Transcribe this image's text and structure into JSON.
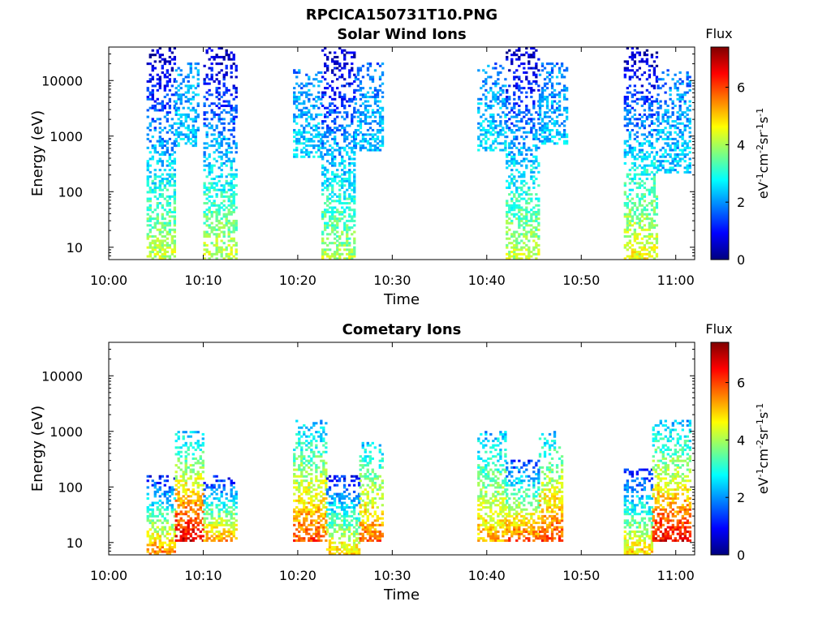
{
  "figure": {
    "title": "RPCICA150731T10.PNG"
  },
  "colormap": {
    "name": "jet",
    "stops": [
      "#00007f",
      "#0000ff",
      "#007fff",
      "#00ffff",
      "#7fff7f",
      "#ffff00",
      "#ff7f00",
      "#ff0000",
      "#7f0000"
    ]
  },
  "chart_data": [
    {
      "type": "heatmap",
      "title": "Solar Wind Ions",
      "xlabel": "Time",
      "ylabel": "Energy (eV)",
      "x_ticks": [
        "10:00",
        "10:10",
        "10:20",
        "10:30",
        "10:40",
        "10:50",
        "11:00"
      ],
      "x_range_minutes": [
        0,
        62
      ],
      "y_scale": "log",
      "y_ticks": [
        "10",
        "100",
        "1000",
        "10000"
      ],
      "y_range": [
        6,
        40000
      ],
      "colorbar": {
        "label": "eV-1cm-2sr-1s-1",
        "title": "Flux",
        "range": [
          0,
          7.4
        ],
        "ticks": [
          "0",
          "2",
          "4",
          "6"
        ]
      },
      "clusters": [
        {
          "t_start": 4.0,
          "t_end": 7.0,
          "e_min": 6,
          "e_max": 40000,
          "v_low": 4.2,
          "v_high": 0.3
        },
        {
          "t_start": 7.0,
          "t_end": 9.5,
          "e_min": 600,
          "e_max": 20000,
          "v_low": 2.4,
          "v_high": 2.0
        },
        {
          "t_start": 10.0,
          "t_end": 13.5,
          "e_min": 6,
          "e_max": 40000,
          "v_low": 4.2,
          "v_high": 0.3
        },
        {
          "t_start": 19.5,
          "t_end": 22.5,
          "e_min": 400,
          "e_max": 15000,
          "v_low": 2.6,
          "v_high": 1.8
        },
        {
          "t_start": 22.5,
          "t_end": 26.0,
          "e_min": 6,
          "e_max": 40000,
          "v_low": 4.0,
          "v_high": 0.3
        },
        {
          "t_start": 26.0,
          "t_end": 29.0,
          "e_min": 500,
          "e_max": 20000,
          "v_low": 2.4,
          "v_high": 1.8
        },
        {
          "t_start": 39.0,
          "t_end": 42.0,
          "e_min": 500,
          "e_max": 20000,
          "v_low": 2.6,
          "v_high": 1.8
        },
        {
          "t_start": 42.0,
          "t_end": 45.5,
          "e_min": 6,
          "e_max": 40000,
          "v_low": 4.2,
          "v_high": 0.3
        },
        {
          "t_start": 45.5,
          "t_end": 48.5,
          "e_min": 700,
          "e_max": 20000,
          "v_low": 2.4,
          "v_high": 1.8
        },
        {
          "t_start": 54.5,
          "t_end": 58.0,
          "e_min": 6,
          "e_max": 40000,
          "v_low": 4.6,
          "v_high": 0.3
        },
        {
          "t_start": 58.0,
          "t_end": 61.5,
          "e_min": 200,
          "e_max": 15000,
          "v_low": 2.4,
          "v_high": 1.8
        }
      ]
    },
    {
      "type": "heatmap",
      "title": "Cometary Ions",
      "xlabel": "Time",
      "ylabel": "Energy (eV)",
      "x_ticks": [
        "10:00",
        "10:10",
        "10:20",
        "10:30",
        "10:40",
        "10:50",
        "11:00"
      ],
      "x_range_minutes": [
        0,
        62
      ],
      "y_scale": "log",
      "y_ticks": [
        "10",
        "100",
        "1000",
        "10000"
      ],
      "y_range": [
        6,
        40000
      ],
      "colorbar": {
        "label": "eV-1cm-2sr-1s-1",
        "title": "Flux",
        "range": [
          0,
          7.4
        ],
        "ticks": [
          "0",
          "2",
          "4",
          "6"
        ]
      },
      "clusters": [
        {
          "t_start": 4.0,
          "t_end": 7.0,
          "e_min": 6,
          "e_max": 150,
          "v_low": 5.6,
          "v_high": 1.0
        },
        {
          "t_start": 7.0,
          "t_end": 10.0,
          "e_min": 10,
          "e_max": 1000,
          "v_low": 6.8,
          "v_high": 2.4
        },
        {
          "t_start": 10.0,
          "t_end": 13.5,
          "e_min": 10,
          "e_max": 150,
          "v_low": 5.4,
          "v_high": 1.0
        },
        {
          "t_start": 19.5,
          "t_end": 23.0,
          "e_min": 10,
          "e_max": 1500,
          "v_low": 6.0,
          "v_high": 2.2
        },
        {
          "t_start": 23.0,
          "t_end": 26.5,
          "e_min": 6,
          "e_max": 150,
          "v_low": 5.0,
          "v_high": 1.0
        },
        {
          "t_start": 26.5,
          "t_end": 29.0,
          "e_min": 10,
          "e_max": 600,
          "v_low": 5.8,
          "v_high": 2.4
        },
        {
          "t_start": 39.0,
          "t_end": 42.0,
          "e_min": 10,
          "e_max": 1000,
          "v_low": 5.2,
          "v_high": 2.2
        },
        {
          "t_start": 42.0,
          "t_end": 45.5,
          "e_min": 10,
          "e_max": 300,
          "v_low": 6.0,
          "v_high": 1.2
        },
        {
          "t_start": 45.5,
          "t_end": 48.0,
          "e_min": 10,
          "e_max": 1000,
          "v_low": 6.0,
          "v_high": 2.4
        },
        {
          "t_start": 54.5,
          "t_end": 57.5,
          "e_min": 6,
          "e_max": 200,
          "v_low": 5.0,
          "v_high": 1.0
        },
        {
          "t_start": 57.5,
          "t_end": 61.5,
          "e_min": 10,
          "e_max": 1500,
          "v_low": 6.6,
          "v_high": 2.2
        }
      ]
    }
  ]
}
